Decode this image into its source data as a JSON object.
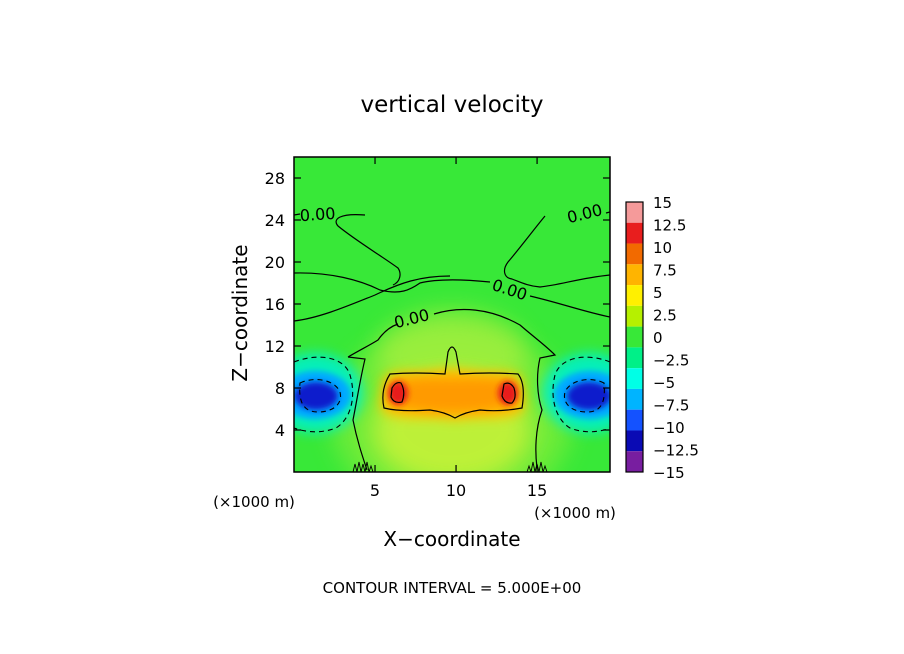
{
  "chart_data": {
    "type": "heatmap",
    "title": "vertical velocity",
    "xlabel": "X−coordinate",
    "ylabel": "Z−coordinate",
    "x_unit": "(×1000 m)",
    "y_unit": "(×1000 m)",
    "xlim": [
      0,
      19.5
    ],
    "ylim": [
      0,
      30
    ],
    "x_ticks": [
      5,
      10,
      15
    ],
    "x_tick_labels": [
      "5",
      "10",
      "15"
    ],
    "y_ticks": [
      4,
      8,
      12,
      16,
      20,
      24,
      28
    ],
    "y_tick_labels": [
      "4",
      "8",
      "12",
      "16",
      "20",
      "24",
      "28"
    ],
    "contour_interval_label": "CONTOUR INTERVAL = 5.000E+00",
    "contour_interval": 5.0,
    "contour_labels": [
      "0.00",
      "0.00",
      "0.00",
      "0.00"
    ],
    "colorbar": {
      "levels": [
        15,
        12.5,
        10,
        7.5,
        5,
        2.5,
        0,
        -2.5,
        -5,
        -7.5,
        -10,
        -12.5,
        -15
      ],
      "labels": [
        "15",
        "12.5",
        "10",
        "7.5",
        "5",
        "2.5",
        "0",
        "−2.5",
        "−5",
        "−7.5",
        "−10",
        "−12.5",
        "−15"
      ],
      "colors": [
        "#f59a9a",
        "#e81e1e",
        "#f26a00",
        "#ffb400",
        "#fff000",
        "#b6f000",
        "#38e838",
        "#00f088",
        "#00ffe6",
        "#00b4ff",
        "#1452ff",
        "#0a0ab4",
        "#781ea0"
      ]
    },
    "features": [
      {
        "name": "updraft-left",
        "x": 6.6,
        "z": 7.8,
        "value": 11
      },
      {
        "name": "updraft-right",
        "x": 13.4,
        "z": 7.8,
        "value": 11
      },
      {
        "name": "downdraft-left",
        "x": 1.5,
        "z": 7.2,
        "value": -11
      },
      {
        "name": "downdraft-right",
        "x": 18.0,
        "z": 7.2,
        "value": -11
      }
    ]
  }
}
